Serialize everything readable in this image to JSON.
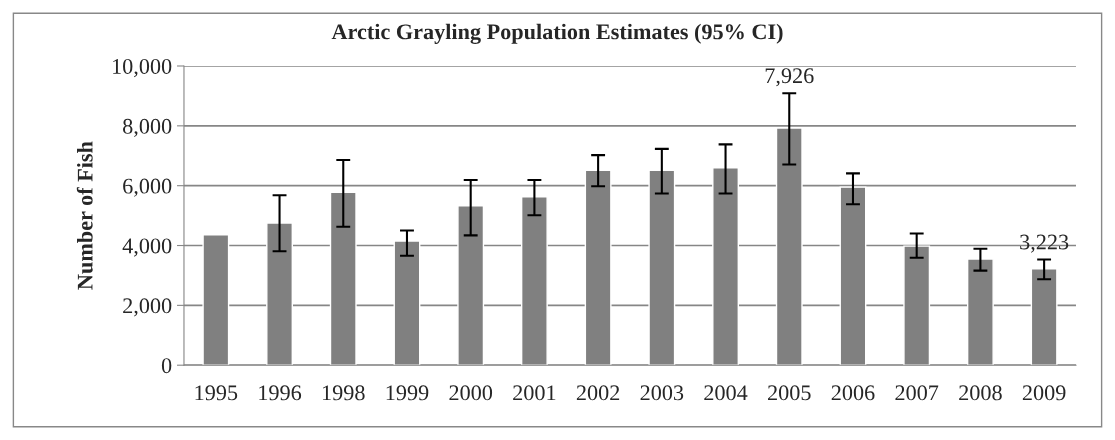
{
  "chart_data": {
    "type": "bar",
    "title": "Arctic Grayling Population Estimates (95% CI)",
    "ylabel": "Number of Fish",
    "categories": [
      "1995",
      "1996",
      "1998",
      "1999",
      "2000",
      "2001",
      "2002",
      "2003",
      "2004",
      "2005",
      "2006",
      "2007",
      "2008",
      "2009"
    ],
    "values": [
      4360,
      4750,
      5780,
      4150,
      5330,
      5630,
      6510,
      6510,
      6600,
      7926,
      5950,
      3980,
      3550,
      3223
    ],
    "errors": [
      null,
      [
        3810,
        5680
      ],
      [
        4630,
        6860
      ],
      [
        3660,
        4500
      ],
      [
        4340,
        6190
      ],
      [
        5010,
        6190
      ],
      [
        5980,
        7020
      ],
      [
        5740,
        7230
      ],
      [
        5740,
        7380
      ],
      [
        6710,
        9090
      ],
      [
        5380,
        6410
      ],
      [
        3590,
        4400
      ],
      [
        3160,
        3890
      ],
      [
        2870,
        3530
      ]
    ],
    "value_labels": [
      null,
      null,
      null,
      null,
      null,
      null,
      null,
      null,
      null,
      "7,926",
      null,
      null,
      null,
      "3,223"
    ],
    "color": "#808080",
    "ylim": [
      0,
      10000
    ],
    "yticks": [
      {
        "value": 0,
        "label": "0"
      },
      {
        "value": 2000,
        "label": "2,000"
      },
      {
        "value": 4000,
        "label": "4,000"
      },
      {
        "value": 6000,
        "label": "6,000"
      },
      {
        "value": 8000,
        "label": "8,000"
      },
      {
        "value": 10000,
        "label": "10,000"
      }
    ],
    "grid": "y"
  }
}
